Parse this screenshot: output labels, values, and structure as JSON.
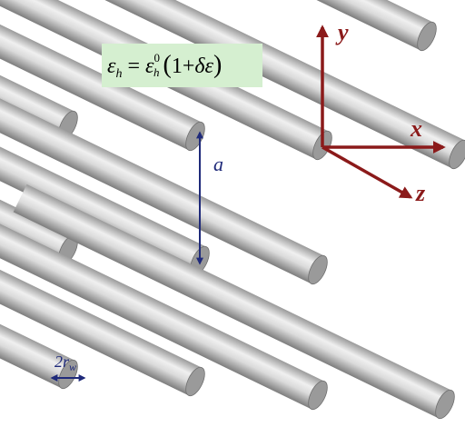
{
  "equation": {
    "eps_h": "ε",
    "sub_h": "h",
    "equals": "=",
    "eps0": "ε",
    "sup0": "0",
    "sub0h": "h",
    "paren_open": "(",
    "one_plus": "1+",
    "delta_eps": "δε",
    "paren_close": ")"
  },
  "axes": {
    "y_label": "y",
    "x_label": "x",
    "z_label": "z"
  },
  "dimensions": {
    "spacing_label": "a",
    "diameter_label_main": "2r",
    "diameter_label_sub": "w"
  },
  "colors": {
    "axis": "#8b1a1a",
    "dimension": "#1f2a7a",
    "equation_bg": "#d5efd0",
    "rod_light": "#e6e6e6",
    "rod_dark": "#8e8e8e",
    "rod_end": "#9a9a9a"
  }
}
